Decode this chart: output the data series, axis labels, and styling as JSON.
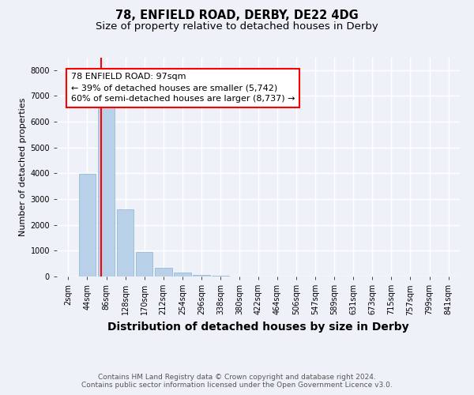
{
  "title": "78, ENFIELD ROAD, DERBY, DE22 4DG",
  "subtitle": "Size of property relative to detached houses in Derby",
  "xlabel": "Distribution of detached houses by size in Derby",
  "ylabel": "Number of detached properties",
  "footer": "Contains HM Land Registry data © Crown copyright and database right 2024.\nContains public sector information licensed under the Open Government Licence v3.0.",
  "bar_labels": [
    "2sqm",
    "44sqm",
    "86sqm",
    "128sqm",
    "170sqm",
    "212sqm",
    "254sqm",
    "296sqm",
    "338sqm",
    "380sqm",
    "422sqm",
    "464sqm",
    "506sqm",
    "547sqm",
    "589sqm",
    "631sqm",
    "673sqm",
    "715sqm",
    "757sqm",
    "799sqm",
    "841sqm"
  ],
  "bar_values": [
    5,
    3980,
    6550,
    2600,
    950,
    330,
    140,
    60,
    30,
    15,
    8,
    4,
    2,
    1,
    0,
    0,
    0,
    0,
    0,
    0,
    0
  ],
  "bar_color": "#b8d0e8",
  "bar_edge_color": "#8ab4d4",
  "annotation_text_line1": "78 ENFIELD ROAD: 97sqm",
  "annotation_text_line2": "← 39% of detached houses are smaller (5,742)",
  "annotation_text_line3": "60% of semi-detached houses are larger (8,737) →",
  "red_line_x": 1.72,
  "ylim": [
    0,
    8500
  ],
  "yticks": [
    0,
    1000,
    2000,
    3000,
    4000,
    5000,
    6000,
    7000,
    8000
  ],
  "bg_color": "#eef2f8",
  "grid_color": "#ffffff",
  "title_fontsize": 10.5,
  "subtitle_fontsize": 9.5,
  "xlabel_fontsize": 10,
  "ylabel_fontsize": 8,
  "tick_fontsize": 7,
  "annotation_fontsize": 8,
  "footer_fontsize": 6.5
}
